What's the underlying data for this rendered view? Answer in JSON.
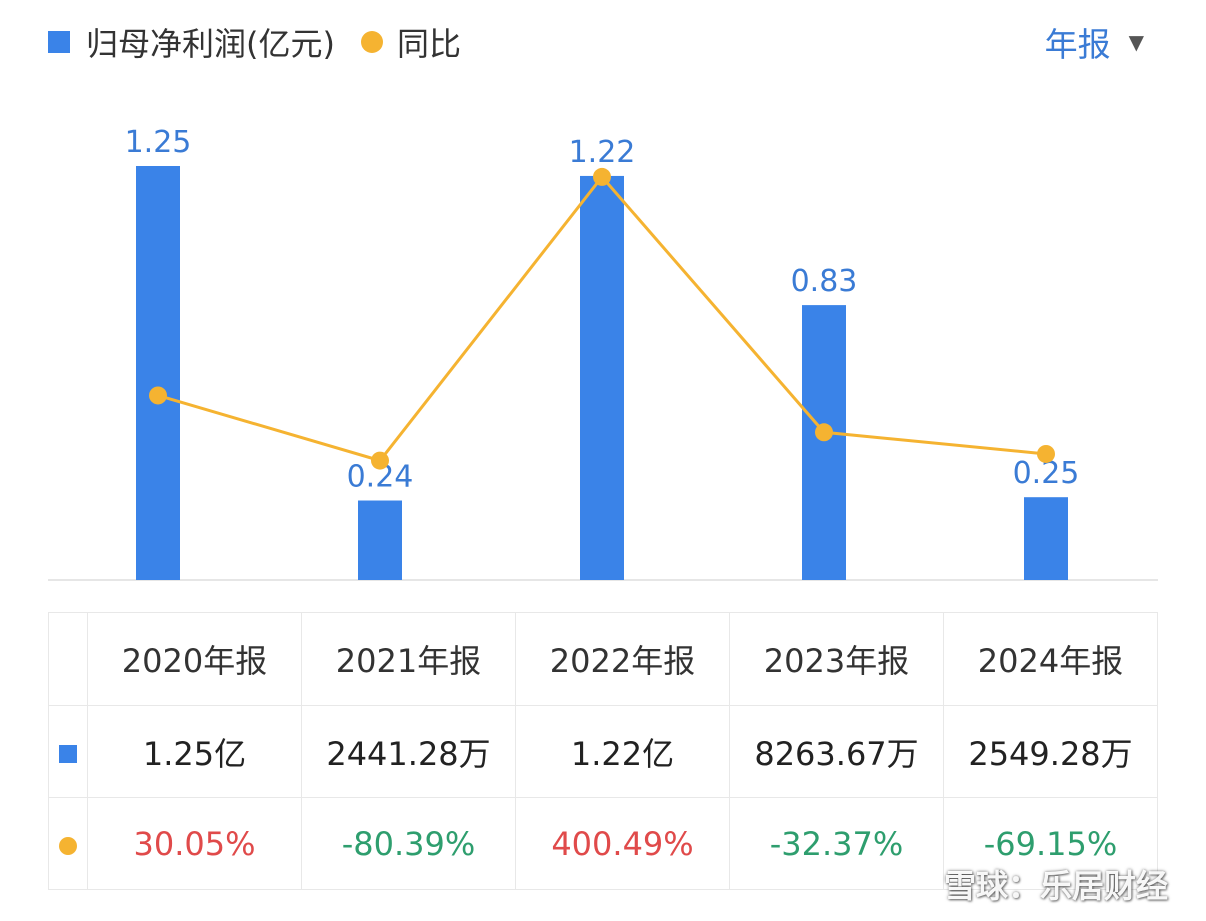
{
  "legend": {
    "profit_label": "归母净利润(亿元)",
    "yoy_label": "同比"
  },
  "period_selector": {
    "label": "年报",
    "caret": "▼"
  },
  "colors": {
    "bar": "#3a83e8",
    "line": "#f5b331",
    "label": "#3a7bd5",
    "positive": "#e04a4a",
    "negative": "#2e9e6e"
  },
  "chart_data": {
    "type": "bar",
    "categories": [
      "2020年报",
      "2021年报",
      "2022年报",
      "2023年报",
      "2024年报"
    ],
    "series": [
      {
        "type": "bar",
        "values": [
          1.25,
          0.24,
          1.22,
          0.83,
          0.25
        ],
        "value_labels": [
          "1.25",
          "0.24",
          "1.22",
          "0.83",
          "0.25"
        ]
      },
      {
        "type": "line",
        "values": [
          30.05,
          -80.39,
          400.49,
          -32.37,
          -69.15
        ]
      }
    ],
    "ylim": [
      0,
      1.3
    ]
  },
  "table": {
    "headers": [
      "2020年报",
      "2021年报",
      "2022年报",
      "2023年报",
      "2024年报"
    ],
    "profit_values": [
      "1.25亿",
      "2441.28万",
      "1.22亿",
      "8263.67万",
      "2549.28万"
    ],
    "yoy_values": [
      "30.05%",
      "-80.39%",
      "400.49%",
      "-32.37%",
      "-69.15%"
    ]
  },
  "watermark": "雪球：乐居财经"
}
